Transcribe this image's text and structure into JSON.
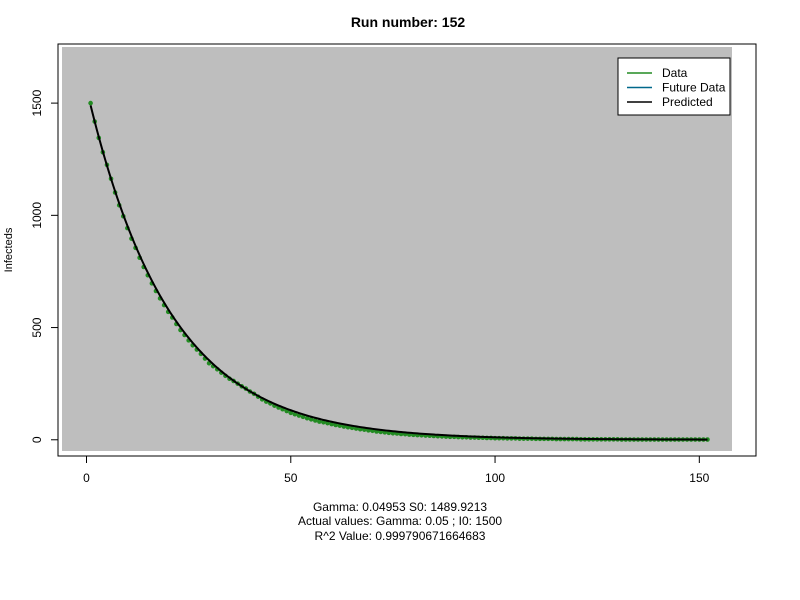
{
  "chart_data": {
    "type": "line",
    "title": "Run number:  152",
    "xlabel": "",
    "ylabel": "Infecteds",
    "xlim": [
      -6,
      158
    ],
    "ylim": [
      -50,
      1750
    ],
    "x_ticks": [
      0,
      50,
      100,
      150
    ],
    "y_ticks": [
      0,
      500,
      1000,
      1500
    ],
    "grid": false,
    "plot_background": "#bebebe",
    "legend_position": "top-right",
    "legend": [
      {
        "label": "Data",
        "color": "#228b22"
      },
      {
        "label": "Future Data",
        "color": "#00688b"
      },
      {
        "label": "Predicted",
        "color": "#000000"
      }
    ],
    "series": [
      {
        "name": "Data",
        "color": "#228b22",
        "style": "points",
        "x": [
          1,
          2,
          3,
          4,
          5,
          6,
          7,
          8,
          9,
          10,
          11,
          12,
          13,
          14,
          15,
          16,
          17,
          18,
          19,
          20,
          21,
          22,
          23,
          24,
          25,
          26,
          27,
          28,
          29,
          30,
          31,
          32,
          33,
          34,
          35,
          36,
          37,
          38,
          39,
          40,
          41,
          42,
          43,
          44,
          45,
          46,
          47,
          48,
          49,
          50,
          51,
          52,
          53,
          54,
          55,
          56,
          57,
          58,
          59,
          60,
          61,
          62,
          63,
          64,
          65,
          66,
          67,
          68,
          69,
          70,
          71,
          72,
          73,
          74,
          75,
          76,
          77,
          78,
          79,
          80,
          81,
          82,
          83,
          84,
          85,
          86,
          87,
          88,
          89,
          90,
          91,
          92,
          93,
          94,
          95,
          96,
          97,
          98,
          99,
          100,
          101,
          102,
          103,
          104,
          105,
          106,
          107,
          108,
          109,
          110,
          111,
          112,
          113,
          114,
          115,
          116,
          117,
          118,
          119,
          120,
          121,
          122,
          123,
          124,
          125,
          126,
          127,
          128,
          129,
          130,
          131,
          132,
          133,
          134,
          135,
          136,
          137,
          138,
          139,
          140,
          141,
          142,
          143,
          144,
          145,
          146,
          147,
          148,
          149,
          150,
          151,
          152
        ],
        "y": [
          1500,
          1418,
          1345,
          1281,
          1225,
          1163,
          1102,
          1045,
          996,
          943,
          896,
          855,
          811,
          770,
          733,
          697,
          663,
          630,
          600,
          570,
          545,
          516,
          489,
          467,
          443,
          421,
          402,
          383,
          362,
          341,
          328,
          314,
          299,
          285,
          272,
          262,
          250,
          238,
          228,
          215,
          205,
          192,
          180,
          170,
          162,
          152,
          144,
          136,
          128,
          120,
          114,
          108,
          102,
          96,
          91,
          86,
          81,
          78,
          74,
          70,
          66,
          63,
          59,
          56,
          53,
          50,
          47,
          45,
          42,
          40,
          37,
          35,
          33,
          31,
          29,
          28,
          26,
          25,
          23,
          22,
          21,
          20,
          19,
          18,
          17,
          16,
          15,
          14,
          13,
          13,
          12,
          11,
          11,
          10,
          10,
          9,
          9,
          8,
          8,
          7,
          7,
          7,
          6,
          6,
          6,
          5,
          5,
          5,
          5,
          4,
          4,
          4,
          4,
          4,
          3,
          3,
          3,
          3,
          3,
          3,
          2,
          2,
          2,
          2,
          2,
          2,
          2,
          2,
          2,
          2,
          1,
          1,
          1,
          1,
          1,
          1,
          1,
          1,
          1,
          1,
          1,
          1,
          1,
          1,
          1,
          1,
          1,
          1,
          1,
          1,
          1,
          1
        ]
      },
      {
        "name": "Predicted",
        "color": "#000000",
        "style": "line",
        "model": "S0*exp(-gamma*(x-1))",
        "parameters": {
          "gamma": 0.04953,
          "S0": 1489.9213
        },
        "x_range": [
          1,
          152
        ]
      }
    ],
    "annotations": [
      "Gamma:  0.04953 S0:  1489.9213",
      "Actual values: Gamma:  0.05 ; I0:  1500",
      "R^2 Value:  0.999790671664683"
    ]
  }
}
